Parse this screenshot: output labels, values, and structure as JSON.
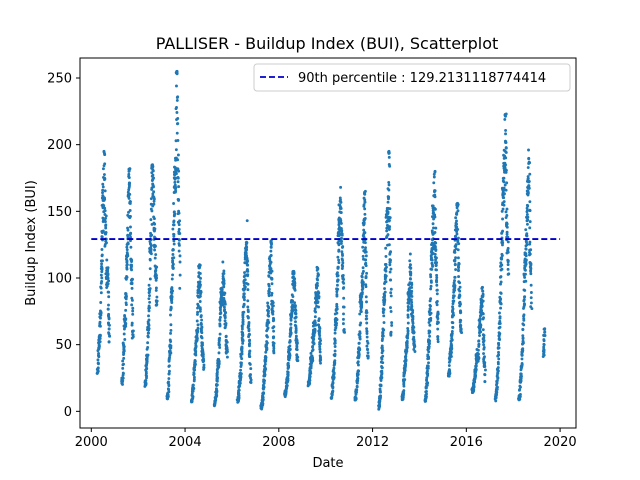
{
  "chart_data": {
    "type": "scatter",
    "title": "PALLISER - Buildup Index (BUI), Scatterplot",
    "xlabel": "Date",
    "ylabel": "Buildup Index (BUI)",
    "x_ticks": [
      "2000",
      "2004",
      "2008",
      "2012",
      "2016",
      "2020"
    ],
    "y_ticks": [
      0,
      50,
      100,
      150,
      200,
      250
    ],
    "xlim": [
      "1999-07-09",
      "2020-09-05"
    ],
    "ylim": [
      -12.5,
      265
    ],
    "grid": false,
    "legend_position": "top-right",
    "point_color": "#1f77b4",
    "reference_line": {
      "label": "90th percentile : 129.2131118774414",
      "value": 129.2131118774414,
      "x_range": [
        "2000-01-01",
        "2020-01-01"
      ],
      "color": "#0000cc",
      "style": "dashed"
    },
    "seasons": [
      {
        "start": "2000-04-05",
        "end": "2000-10-10",
        "start_value": 30,
        "peak_date": "2000-07-20",
        "peak_value": 195,
        "end_value": 52
      },
      {
        "start": "2001-04-20",
        "end": "2001-10-15",
        "start_value": 22,
        "peak_date": "2001-08-15",
        "peak_value": 182,
        "end_value": 60
      },
      {
        "start": "2002-04-20",
        "end": "2002-10-20",
        "start_value": 20,
        "peak_date": "2002-08-20",
        "peak_value": 185,
        "end_value": 80
      },
      {
        "start": "2003-04-01",
        "end": "2003-10-10",
        "start_value": 10,
        "peak_date": "2003-08-25",
        "peak_value": 255,
        "end_value": 110
      },
      {
        "start": "2004-04-10",
        "end": "2004-10-20",
        "start_value": 8,
        "peak_date": "2004-08-15",
        "peak_value": 110,
        "end_value": 30
      },
      {
        "start": "2005-04-05",
        "end": "2005-10-20",
        "start_value": 5,
        "peak_date": "2005-08-15",
        "peak_value": 112,
        "end_value": 40
      },
      {
        "start": "2006-04-01",
        "end": "2006-10-20",
        "start_value": 8,
        "peak_date": "2006-08-20",
        "peak_value": 143,
        "end_value": 20
      },
      {
        "start": "2007-04-01",
        "end": "2007-10-20",
        "start_value": 3,
        "peak_date": "2007-09-05",
        "peak_value": 128,
        "end_value": 40
      },
      {
        "start": "2008-04-05",
        "end": "2008-10-20",
        "start_value": 12,
        "peak_date": "2008-08-25",
        "peak_value": 105,
        "end_value": 40
      },
      {
        "start": "2009-04-05",
        "end": "2009-10-15",
        "start_value": 22,
        "peak_date": "2009-08-25",
        "peak_value": 108,
        "end_value": 40
      },
      {
        "start": "2010-04-01",
        "end": "2010-10-15",
        "start_value": 10,
        "peak_date": "2010-08-20",
        "peak_value": 168,
        "end_value": 70
      },
      {
        "start": "2011-04-05",
        "end": "2011-10-20",
        "start_value": 8,
        "peak_date": "2011-09-05",
        "peak_value": 165,
        "end_value": 40
      },
      {
        "start": "2012-04-05",
        "end": "2012-10-20",
        "start_value": 3,
        "peak_date": "2012-09-15",
        "peak_value": 195,
        "end_value": 60
      },
      {
        "start": "2013-04-10",
        "end": "2013-10-15",
        "start_value": 10,
        "peak_date": "2013-08-15",
        "peak_value": 118,
        "end_value": 45
      },
      {
        "start": "2014-04-01",
        "end": "2014-10-20",
        "start_value": 8,
        "peak_date": "2014-08-25",
        "peak_value": 180,
        "end_value": 60
      },
      {
        "start": "2015-04-01",
        "end": "2015-10-15",
        "start_value": 30,
        "peak_date": "2015-08-15",
        "peak_value": 156,
        "end_value": 60
      },
      {
        "start": "2016-04-05",
        "end": "2016-10-20",
        "start_value": 15,
        "peak_date": "2016-09-10",
        "peak_value": 93,
        "end_value": 20
      },
      {
        "start": "2017-04-01",
        "end": "2017-10-15",
        "start_value": 10,
        "peak_date": "2017-09-05",
        "peak_value": 223,
        "end_value": 110
      },
      {
        "start": "2018-04-01",
        "end": "2018-10-10",
        "start_value": 10,
        "peak_date": "2018-09-01",
        "peak_value": 196,
        "end_value": 70
      },
      {
        "start": "2019-04-15",
        "end": "2019-05-05",
        "start_value": 48,
        "peak_date": "2019-05-05",
        "peak_value": 62,
        "end_value": 62
      }
    ]
  }
}
